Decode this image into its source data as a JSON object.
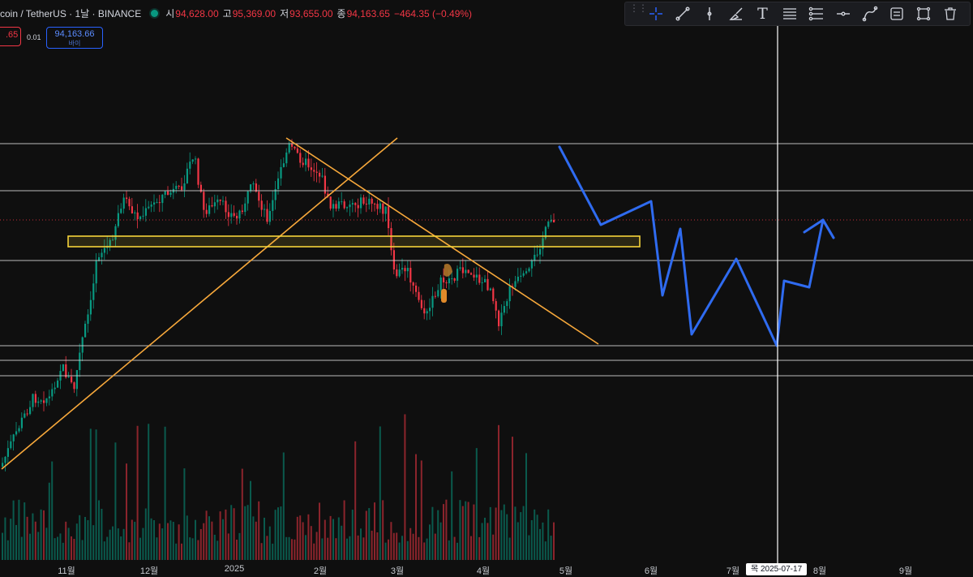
{
  "legend": {
    "symbol": "coin / TetherUS · 1날 · BINANCE",
    "open_label": "시",
    "open": "94,628.00",
    "high_label": "고",
    "high": "95,369.00",
    "low_label": "저",
    "low": "93,655.00",
    "close_label": "종",
    "close": "94,163.65",
    "change": "−464.35 (−0.49%)"
  },
  "price_boxes": {
    "sell": ".65",
    "spread": "0.01",
    "buy": "94,163.66",
    "buy_sub": "바이"
  },
  "toolbar": {
    "tools": [
      "crosshair-icon",
      "trend-line-icon",
      "vertical-line-icon",
      "brush-icon",
      "text-icon",
      "fib-retracement-icon",
      "parallel-channel-icon",
      "horizontal-ray-icon",
      "path-icon",
      "measure-icon",
      "rectangle-icon",
      "trash-icon"
    ],
    "text_tool_label": "T"
  },
  "time_axis": [
    "11월",
    "12월",
    "2025",
    "2월",
    "3월",
    "4월",
    "5월",
    "6월",
    "7월",
    "8월",
    "9월"
  ],
  "crosshair_label": "목 2025-07-17",
  "colors": {
    "background": "#0f0f0f",
    "up": "#089981",
    "down": "#f23645",
    "trendline": "#f7a83b",
    "zone": "#f5d33a",
    "projection": "#2f6bf0",
    "level": "#d9d9d9"
  }
}
